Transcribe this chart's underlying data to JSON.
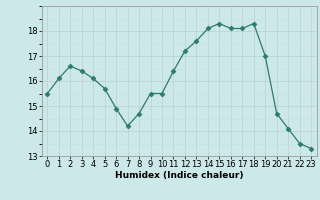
{
  "x": [
    0,
    1,
    2,
    3,
    4,
    5,
    6,
    7,
    8,
    9,
    10,
    11,
    12,
    13,
    14,
    15,
    16,
    17,
    18,
    19,
    20,
    21,
    22,
    23
  ],
  "y": [
    15.5,
    16.1,
    16.6,
    16.4,
    16.1,
    15.7,
    14.9,
    14.2,
    14.7,
    15.5,
    15.5,
    16.4,
    17.2,
    17.6,
    18.1,
    18.3,
    18.1,
    18.1,
    18.3,
    17.0,
    14.7,
    14.1,
    13.5,
    13.3
  ],
  "line_color": "#2d7a6e",
  "marker": "D",
  "marker_size": 2.5,
  "bg_color": "#cce8e8",
  "grid_color_major": "#b8d0d0",
  "grid_color_minor": "#c8e0e0",
  "xlabel": "Humidex (Indice chaleur)",
  "ylim": [
    13,
    19
  ],
  "xlim": [
    -0.5,
    23.5
  ],
  "yticks": [
    13,
    14,
    15,
    16,
    17,
    18
  ],
  "xticks": [
    0,
    1,
    2,
    3,
    4,
    5,
    6,
    7,
    8,
    9,
    10,
    11,
    12,
    13,
    14,
    15,
    16,
    17,
    18,
    19,
    20,
    21,
    22,
    23
  ],
  "label_fontsize": 6.5,
  "tick_fontsize": 6.0
}
